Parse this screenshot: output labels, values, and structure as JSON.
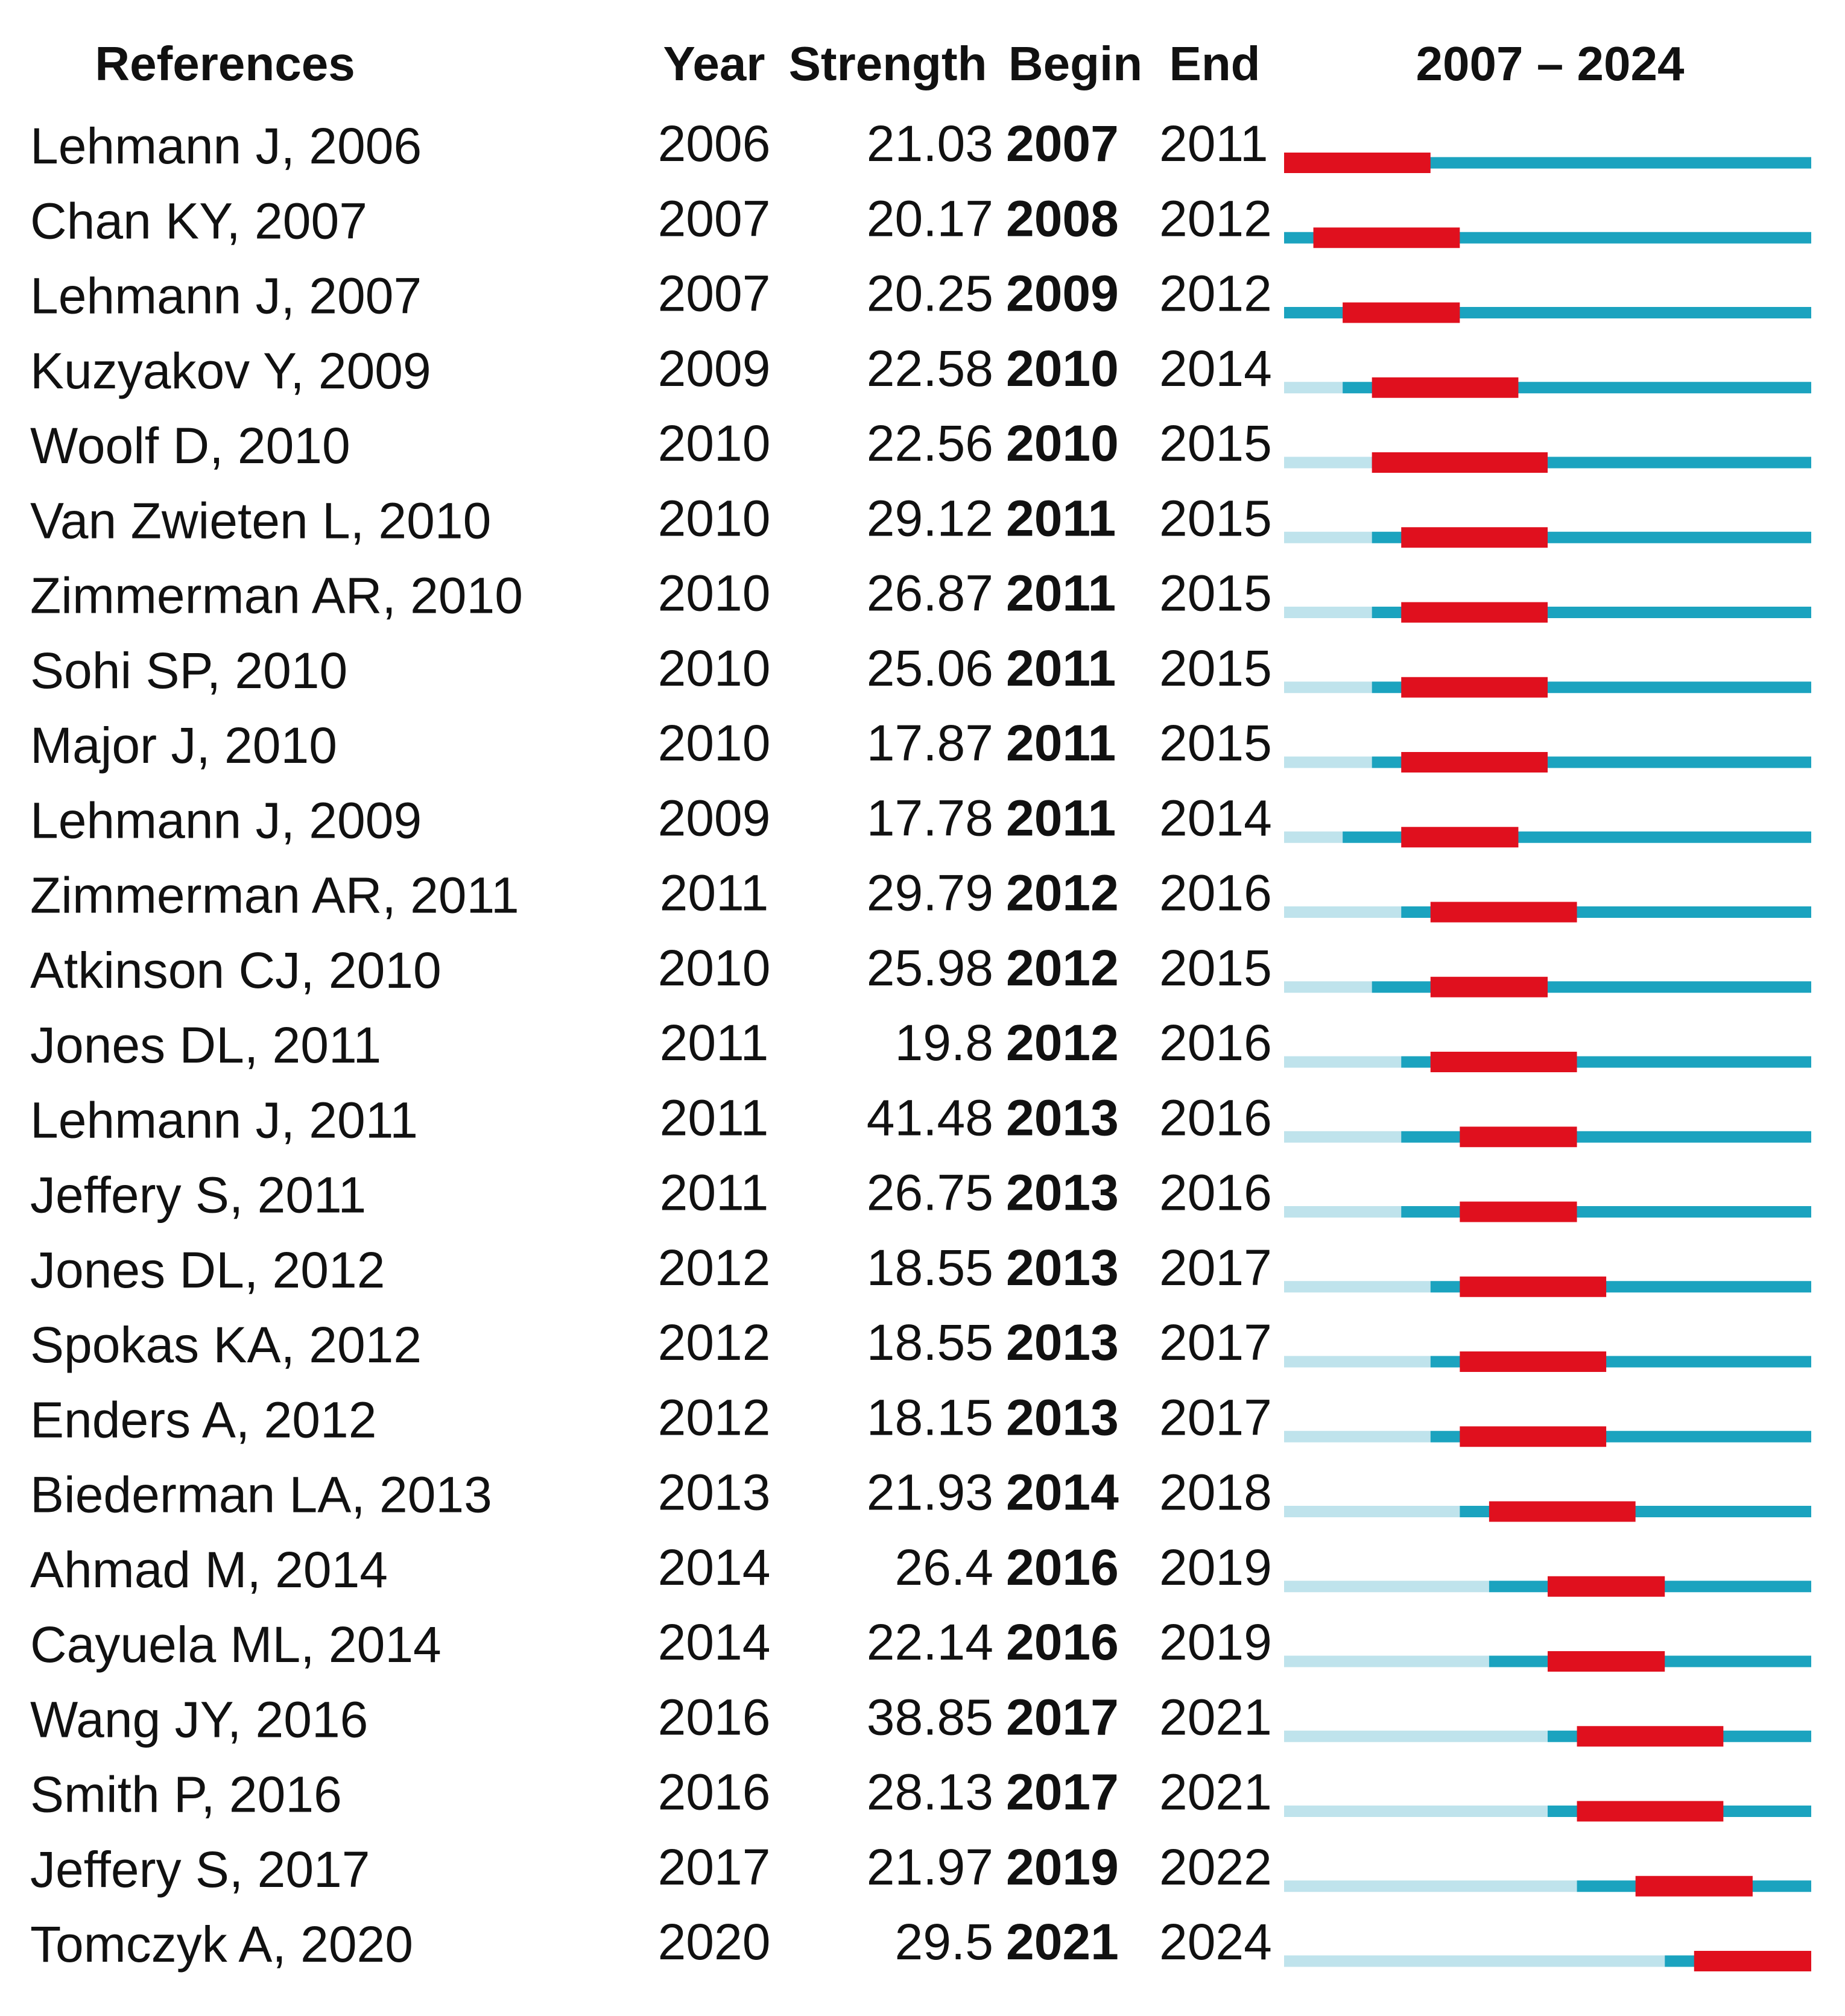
{
  "chart_data": {
    "type": "burst",
    "columns": [
      "References",
      "Year",
      "Strength",
      "Begin",
      "End"
    ],
    "timeline": "2007 – 2024",
    "xlim": [
      2007,
      2024
    ],
    "colors": {
      "before": "#bfe3ec",
      "active": "#1ba3bf",
      "burst": "#e0101e"
    },
    "rows": [
      {
        "reference": "Lehmann J, 2006",
        "year": 2006,
        "strength": 21.03,
        "begin": 2007,
        "end": 2011
      },
      {
        "reference": "Chan KY, 2007",
        "year": 2007,
        "strength": 20.17,
        "begin": 2008,
        "end": 2012
      },
      {
        "reference": "Lehmann J, 2007",
        "year": 2007,
        "strength": 20.25,
        "begin": 2009,
        "end": 2012
      },
      {
        "reference": "Kuzyakov Y, 2009",
        "year": 2009,
        "strength": 22.58,
        "begin": 2010,
        "end": 2014
      },
      {
        "reference": "Woolf D, 2010",
        "year": 2010,
        "strength": 22.56,
        "begin": 2010,
        "end": 2015
      },
      {
        "reference": "Van Zwieten L, 2010",
        "year": 2010,
        "strength": 29.12,
        "begin": 2011,
        "end": 2015
      },
      {
        "reference": "Zimmerman AR, 2010",
        "year": 2010,
        "strength": 26.87,
        "begin": 2011,
        "end": 2015
      },
      {
        "reference": "Sohi SP, 2010",
        "year": 2010,
        "strength": 25.06,
        "begin": 2011,
        "end": 2015
      },
      {
        "reference": "Major J, 2010",
        "year": 2010,
        "strength": 17.87,
        "begin": 2011,
        "end": 2015
      },
      {
        "reference": "Lehmann J, 2009",
        "year": 2009,
        "strength": 17.78,
        "begin": 2011,
        "end": 2014
      },
      {
        "reference": "Zimmerman AR, 2011",
        "year": 2011,
        "strength": 29.79,
        "begin": 2012,
        "end": 2016
      },
      {
        "reference": "Atkinson CJ, 2010",
        "year": 2010,
        "strength": 25.98,
        "begin": 2012,
        "end": 2015
      },
      {
        "reference": "Jones DL, 2011",
        "year": 2011,
        "strength": 19.8,
        "begin": 2012,
        "end": 2016
      },
      {
        "reference": "Lehmann J, 2011",
        "year": 2011,
        "strength": 41.48,
        "begin": 2013,
        "end": 2016
      },
      {
        "reference": "Jeffery S, 2011",
        "year": 2011,
        "strength": 26.75,
        "begin": 2013,
        "end": 2016
      },
      {
        "reference": "Jones DL, 2012",
        "year": 2012,
        "strength": 18.55,
        "begin": 2013,
        "end": 2017
      },
      {
        "reference": "Spokas KA, 2012",
        "year": 2012,
        "strength": 18.55,
        "begin": 2013,
        "end": 2017
      },
      {
        "reference": "Enders A, 2012",
        "year": 2012,
        "strength": 18.15,
        "begin": 2013,
        "end": 2017
      },
      {
        "reference": "Biederman LA, 2013",
        "year": 2013,
        "strength": 21.93,
        "begin": 2014,
        "end": 2018
      },
      {
        "reference": "Ahmad M, 2014",
        "year": 2014,
        "strength": 26.4,
        "begin": 2016,
        "end": 2019
      },
      {
        "reference": "Cayuela ML, 2014",
        "year": 2014,
        "strength": 22.14,
        "begin": 2016,
        "end": 2019
      },
      {
        "reference": "Wang JY, 2016",
        "year": 2016,
        "strength": 38.85,
        "begin": 2017,
        "end": 2021
      },
      {
        "reference": "Smith P, 2016",
        "year": 2016,
        "strength": 28.13,
        "begin": 2017,
        "end": 2021
      },
      {
        "reference": "Jeffery S, 2017",
        "year": 2017,
        "strength": 21.97,
        "begin": 2019,
        "end": 2022
      },
      {
        "reference": "Tomczyk A, 2020",
        "year": 2020,
        "strength": 29.5,
        "begin": 2021,
        "end": 2024
      }
    ]
  }
}
